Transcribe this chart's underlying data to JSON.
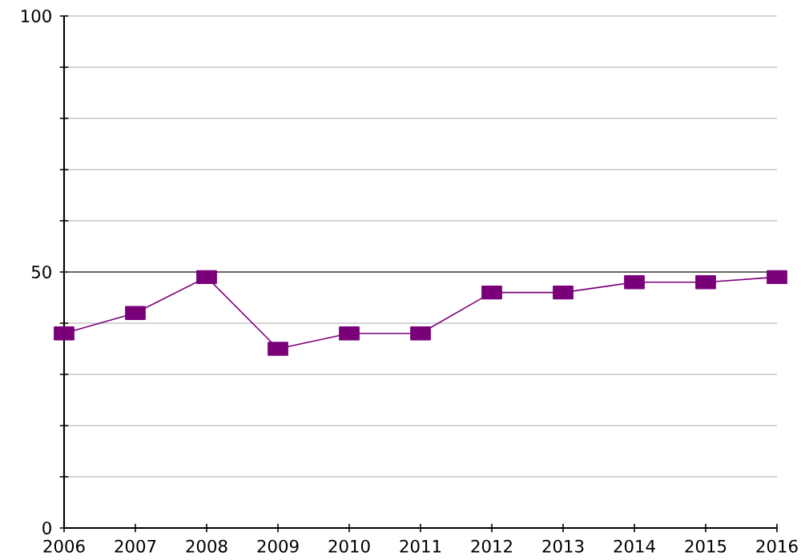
{
  "chart_data": {
    "type": "line",
    "x": [
      2006,
      2007,
      2008,
      2009,
      2010,
      2011,
      2012,
      2013,
      2014,
      2015,
      2016
    ],
    "xlim": [
      2006,
      2016
    ],
    "xticks": [
      2006,
      2007,
      2008,
      2009,
      2010,
      2011,
      2012,
      2013,
      2014,
      2015,
      2016
    ],
    "series": [
      {
        "color": "#7a007a",
        "values": [
          38,
          42,
          49,
          35,
          38,
          38,
          46,
          46,
          48,
          48,
          49
        ]
      }
    ],
    "ylim": [
      0,
      100
    ],
    "yticks": [
      0,
      {
        "value": 10,
        "label": null
      },
      {
        "value": 20,
        "label": null
      },
      {
        "value": 30,
        "label": null
      },
      {
        "value": 40,
        "label": null
      },
      50,
      {
        "value": 60,
        "label": null
      },
      {
        "value": 70,
        "label": null
      },
      {
        "value": 80,
        "label": null
      },
      {
        "value": 90,
        "label": null
      },
      100
    ],
    "ref_lines": [
      {
        "axis": "y",
        "value": 50,
        "color": "#404040"
      }
    ],
    "grid": "y",
    "marker": "square",
    "line_style": "solid"
  }
}
